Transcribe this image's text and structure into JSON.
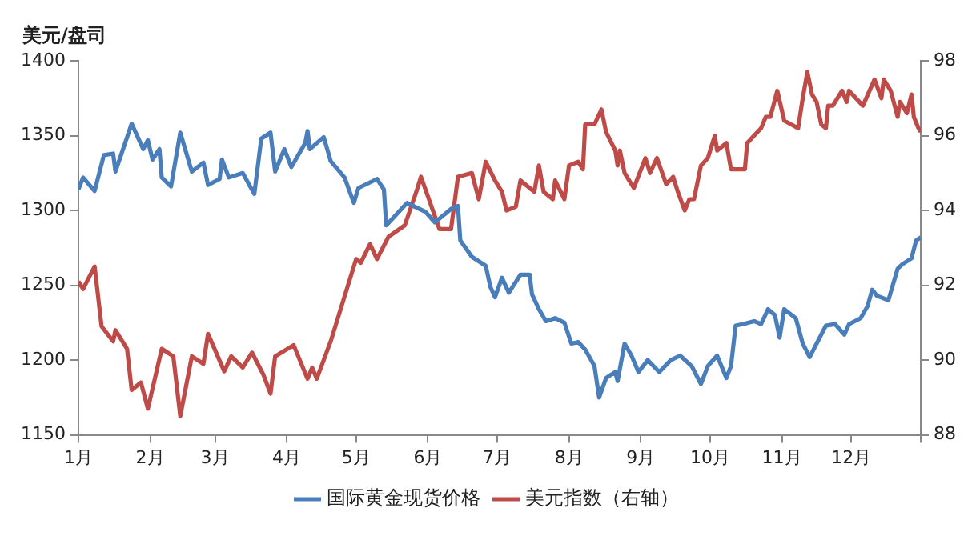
{
  "chart_data": {
    "type": "line",
    "ylabel": "美元/盘司",
    "xlim": [
      "--01-01",
      "--12-31"
    ],
    "xticks": [
      {
        "value": "--01-01",
        "label": "1月"
      },
      {
        "value": "--02-01",
        "label": "2月"
      },
      {
        "value": "--03-01",
        "label": "3月"
      },
      {
        "value": "--04-01",
        "label": "4月"
      },
      {
        "value": "--05-01",
        "label": "5月"
      },
      {
        "value": "--06-01",
        "label": "6月"
      },
      {
        "value": "--07-01",
        "label": "7月"
      },
      {
        "value": "--08-01",
        "label": "8月"
      },
      {
        "value": "--09-01",
        "label": "9月"
      },
      {
        "value": "--10-01",
        "label": "10月"
      },
      {
        "value": "--11-01",
        "label": "11月"
      },
      {
        "value": "--12-01",
        "label": "12月"
      },
      {
        "value": "--12-31",
        "label": null
      }
    ],
    "ylim": [
      1150,
      1400
    ],
    "yticks": [
      1150,
      1200,
      1250,
      1300,
      1350,
      1400
    ],
    "y2lim": [
      88,
      98
    ],
    "y2ticks": [
      88,
      90,
      92,
      94,
      96,
      98
    ],
    "legend": "bottom",
    "marker": "none",
    "series": [
      {
        "name": "国际黄金现货价格",
        "color": "#4a7ebb",
        "axis": "y",
        "x": [
          "--01-01",
          "--01-03",
          "--01-08",
          "--01-12",
          "--01-16",
          "--01-17",
          "--01-24",
          "--01-29",
          "--01-31",
          "--02-02",
          "--02-05",
          "--02-06",
          "--02-10",
          "--02-14",
          "--02-19",
          "--02-24",
          "--02-26",
          "--03-03",
          "--03-04",
          "--03-07",
          "--03-13",
          "--03-18",
          "--03-21",
          "--03-25",
          "--03-27",
          "--03-31",
          "--04-03",
          "--04-09",
          "--04-10",
          "--04-11",
          "--04-17",
          "--04-20",
          "--04-26",
          "--04-30",
          "--05-02",
          "--05-10",
          "--05-13",
          "--05-14",
          "--05-23",
          "--05-31",
          "--06-04",
          "--06-11",
          "--06-14",
          "--06-15",
          "--06-20",
          "--06-26",
          "--06-28",
          "--06-30",
          "--07-03",
          "--07-06",
          "--07-11",
          "--07-15",
          "--07-16",
          "--07-19",
          "--07-22",
          "--07-26",
          "--07-30",
          "--08-02",
          "--08-05",
          "--08-08",
          "--08-12",
          "--08-14",
          "--08-17",
          "--08-21",
          "--08-22",
          "--08-25",
          "--08-28",
          "--08-31",
          "--09-04",
          "--09-09",
          "--09-14",
          "--09-18",
          "--09-23",
          "--09-27",
          "--09-30",
          "--10-04",
          "--10-08",
          "--10-10",
          "--10-12",
          "--10-15",
          "--10-20",
          "--10-23",
          "--10-26",
          "--10-29",
          "--10-31",
          "--11-02",
          "--11-07",
          "--11-10",
          "--11-13",
          "--11-16",
          "--11-20",
          "--11-24",
          "--11-28",
          "--11-30",
          "--12-05",
          "--12-08",
          "--12-10",
          "--12-12",
          "--12-17",
          "--12-21",
          "--12-23",
          "--12-27",
          "--12-29",
          "--12-31"
        ],
        "values": [
          1314,
          1322,
          1313,
          1337,
          1338,
          1326,
          1358,
          1341,
          1347,
          1334,
          1341,
          1322,
          1316,
          1352,
          1326,
          1332,
          1317,
          1321,
          1334,
          1322,
          1325,
          1311,
          1348,
          1352,
          1326,
          1341,
          1329,
          1345,
          1353,
          1341,
          1349,
          1333,
          1322,
          1305,
          1315,
          1321,
          1314,
          1290,
          1305,
          1299,
          1292,
          1301,
          1303,
          1280,
          1269,
          1263,
          1249,
          1242,
          1255,
          1245,
          1257,
          1257,
          1244,
          1234,
          1226,
          1228,
          1225,
          1211,
          1212,
          1207,
          1196,
          1175,
          1188,
          1192,
          1186,
          1211,
          1203,
          1192,
          1200,
          1192,
          1200,
          1203,
          1196,
          1184,
          1196,
          1203,
          1188,
          1196,
          1223,
          1224,
          1226,
          1224,
          1234,
          1230,
          1215,
          1234,
          1228,
          1211,
          1202,
          1211,
          1223,
          1224,
          1217,
          1224,
          1228,
          1236,
          1247,
          1243,
          1240,
          1261,
          1264,
          1268,
          1280,
          1282
        ]
      },
      {
        "name": "美元指数（右轴）",
        "color": "#be4b48",
        "axis": "y2",
        "x": [
          "--01-01",
          "--01-03",
          "--01-08",
          "--01-11",
          "--01-16",
          "--01-17",
          "--01-22",
          "--01-24",
          "--01-28",
          "--01-31",
          "--02-06",
          "--02-11",
          "--02-14",
          "--02-19",
          "--02-24",
          "--02-26",
          "--03-05",
          "--03-08",
          "--03-13",
          "--03-17",
          "--03-22",
          "--03-25",
          "--03-27",
          "--04-04",
          "--04-10",
          "--04-12",
          "--04-14",
          "--04-20",
          "--04-26",
          "--05-01",
          "--05-03",
          "--05-07",
          "--05-10",
          "--05-15",
          "--05-22",
          "--05-27",
          "--05-29",
          "--06-02",
          "--06-06",
          "--06-11",
          "--06-14",
          "--06-20",
          "--06-23",
          "--06-26",
          "--06-30",
          "--07-03",
          "--07-05",
          "--07-09",
          "--07-11",
          "--07-17",
          "--07-19",
          "--07-21",
          "--07-25",
          "--07-26",
          "--07-30",
          "--08-01",
          "--08-05",
          "--08-07",
          "--08-08",
          "--08-12",
          "--08-15",
          "--08-17",
          "--08-21",
          "--08-22",
          "--08-23",
          "--08-25",
          "--08-29",
          "--09-03",
          "--09-05",
          "--09-08",
          "--09-12",
          "--09-15",
          "--09-17",
          "--09-20",
          "--09-22",
          "--09-24",
          "--09-27",
          "--09-30",
          "--10-03",
          "--10-04",
          "--10-08",
          "--10-10",
          "--10-16",
          "--10-17",
          "--10-20",
          "--10-23",
          "--10-25",
          "--10-27",
          "--10-30",
          "--11-02",
          "--11-08",
          "--11-10",
          "--11-12",
          "--11-14",
          "--11-16",
          "--11-18",
          "--11-20",
          "--11-21",
          "--11-23",
          "--11-27",
          "--11-29",
          "--11-30",
          "--12-06",
          "--12-11",
          "--12-14",
          "--12-15",
          "--12-18",
          "--12-21",
          "--12-22",
          "--12-25",
          "--12-27",
          "--12-28",
          "--12-30",
          "--12-31"
        ],
        "values": [
          92.1,
          91.9,
          92.5,
          90.9,
          90.5,
          90.8,
          90.3,
          89.2,
          89.4,
          88.7,
          90.3,
          90.1,
          88.5,
          90.1,
          89.9,
          90.7,
          89.7,
          90.1,
          89.8,
          90.2,
          89.6,
          89.1,
          90.1,
          90.4,
          89.5,
          89.8,
          89.5,
          90.5,
          91.7,
          92.7,
          92.6,
          93.1,
          92.7,
          93.3,
          93.6,
          94.5,
          94.9,
          94.2,
          93.5,
          93.5,
          94.9,
          95,
          94.3,
          95.3,
          94.8,
          94.5,
          94,
          94.1,
          94.8,
          94.5,
          95.2,
          94.5,
          94.3,
          94.8,
          94.3,
          95.2,
          95.3,
          95.1,
          96.3,
          96.3,
          96.7,
          96.1,
          95.6,
          95.2,
          95.6,
          95,
          94.6,
          95.4,
          95,
          95.4,
          94.7,
          94.9,
          94.5,
          94,
          94.3,
          94.3,
          95.2,
          95.4,
          96,
          95.6,
          95.8,
          95.1,
          95.1,
          95.8,
          96,
          96.2,
          96.5,
          96.5,
          97.2,
          96.4,
          96.2,
          97,
          97.7,
          97.1,
          96.9,
          96.3,
          96.2,
          96.8,
          96.8,
          97.2,
          96.9,
          97.2,
          96.8,
          97.5,
          97,
          97.5,
          97.2,
          96.5,
          96.9,
          96.6,
          97.1,
          96.5,
          96.2,
          96.1
        ]
      }
    ]
  }
}
